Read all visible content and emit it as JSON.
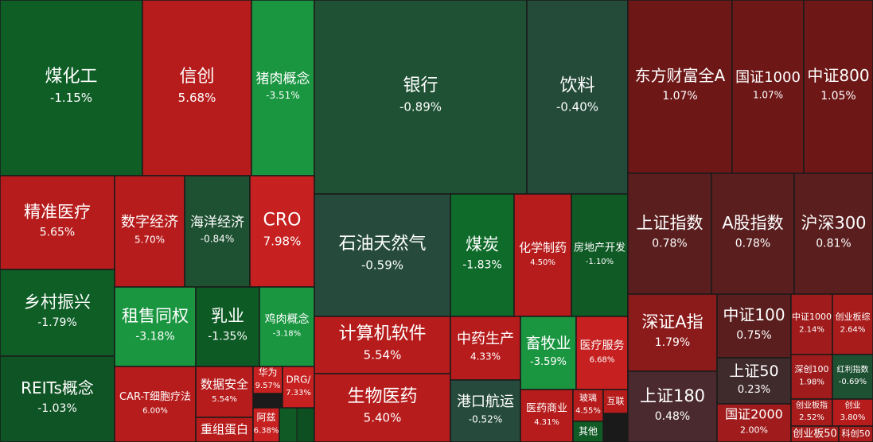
{
  "chart_data": {
    "type": "treemap",
    "categories": [
      "煤化工",
      "信创",
      "猪肉概念",
      "银行",
      "饮料",
      "东方财富全A",
      "国证1000",
      "中证800",
      "精准医疗",
      "数字经济",
      "海洋经济",
      "CRO",
      "石油天然气",
      "煤炭",
      "化学制药",
      "房地产开发",
      "上证指数",
      "A股指数",
      "沪深300",
      "乡村振兴",
      "REITs概念",
      "租售同权",
      "乳业",
      "鸡肉概念",
      "计算机软件",
      "生物医药",
      "中药生产",
      "畜牧业",
      "医疗服务",
      "港口航运",
      "医药商业",
      "玻璃",
      "互联",
      "其他",
      "深证A指",
      "上证180",
      "中证100",
      "上证50",
      "国证2000",
      "中证1000",
      "创业板综",
      "深创100",
      "红利指数",
      "创业板指",
      "创业",
      "创业板50",
      "科创50",
      "CAR-T细胞疗法",
      "数据安全",
      "重组蛋白",
      "华为",
      "DRG/",
      "阿兹"
    ],
    "values": [
      -1.15,
      5.68,
      -3.51,
      -0.89,
      -0.4,
      1.07,
      1.07,
      1.05,
      5.65,
      5.7,
      -0.84,
      7.98,
      -0.59,
      -1.83,
      4.5,
      -1.1,
      0.78,
      0.78,
      0.81,
      -1.79,
      -1.03,
      -3.18,
      -1.35,
      -3.18,
      5.54,
      5.4,
      4.33,
      -3.59,
      6.68,
      -0.52,
      4.31,
      4.55,
      null,
      null,
      1.79,
      0.48,
      0.75,
      0.23,
      2.0,
      2.14,
      2.64,
      1.98,
      -0.69,
      2.52,
      3.8,
      null,
      null,
      6.0,
      5.54,
      null,
      9.57,
      7.33,
      6.38
    ],
    "value_labels": [
      "-1.15%",
      "5.68%",
      "-3.51%",
      "-0.89%",
      "-0.40%",
      "1.07%",
      "1.07%",
      "1.05%",
      "5.65%",
      "5.70%",
      "-0.84%",
      "7.98%",
      "-0.59%",
      "-1.83%",
      "4.50%",
      "-1.10%",
      "0.78%",
      "0.78%",
      "0.81%",
      "-1.79%",
      "-1.03%",
      "-3.18%",
      "-1.35%",
      "-3.18%",
      "5.54%",
      "5.40%",
      "4.33%",
      "-3.59%",
      "6.68%",
      "-0.52%",
      "4.31%",
      "4.55%",
      null,
      null,
      "1.79%",
      "0.48%",
      "0.75%",
      "0.23%",
      "2.00%",
      "2.14%",
      "2.64%",
      "1.98%",
      "-0.69%",
      "2.52%",
      "3.80%",
      null,
      null,
      "6.00%",
      "5.54%",
      null,
      "9.57%",
      "7.33%",
      "6.38%"
    ],
    "colors": [
      "#0f5e26",
      "#b71c1c",
      "#1a9641",
      "#1f5234",
      "#244a3a",
      "#6e1717",
      "#6e1717",
      "#6e1717",
      "#b71c1c",
      "#b71c1c",
      "#1e5032",
      "#c62020",
      "#264b3c",
      "#0e6b2a",
      "#b71c1c",
      "#0f5a25",
      "#5a1e1e",
      "#5a1e1e",
      "#5a1e1e",
      "#0e5e26",
      "#0f5424",
      "#1a9641",
      "#0d5a24",
      "#1a9641",
      "#b71c1c",
      "#b71c1c",
      "#b71c1c",
      "#1a9641",
      "#c62020",
      "#264b3c",
      "#b71c1c",
      "#b71c1c",
      "#b71c1c",
      "#0f5a25",
      "#8b1a1a",
      "#4a2a2e",
      "#5a1e1e",
      "#3f2a2c",
      "#a01c1c",
      "#a01c1c",
      "#a81c1c",
      "#a01c1c",
      "#1e5032",
      "#a81c1c",
      "#b71c1c",
      "#a81c1c",
      "#a81c1c",
      "#b71c1c",
      "#b71c1c",
      "#b71c1c",
      "#c62020",
      "#c62020",
      "#c62020"
    ]
  }
}
